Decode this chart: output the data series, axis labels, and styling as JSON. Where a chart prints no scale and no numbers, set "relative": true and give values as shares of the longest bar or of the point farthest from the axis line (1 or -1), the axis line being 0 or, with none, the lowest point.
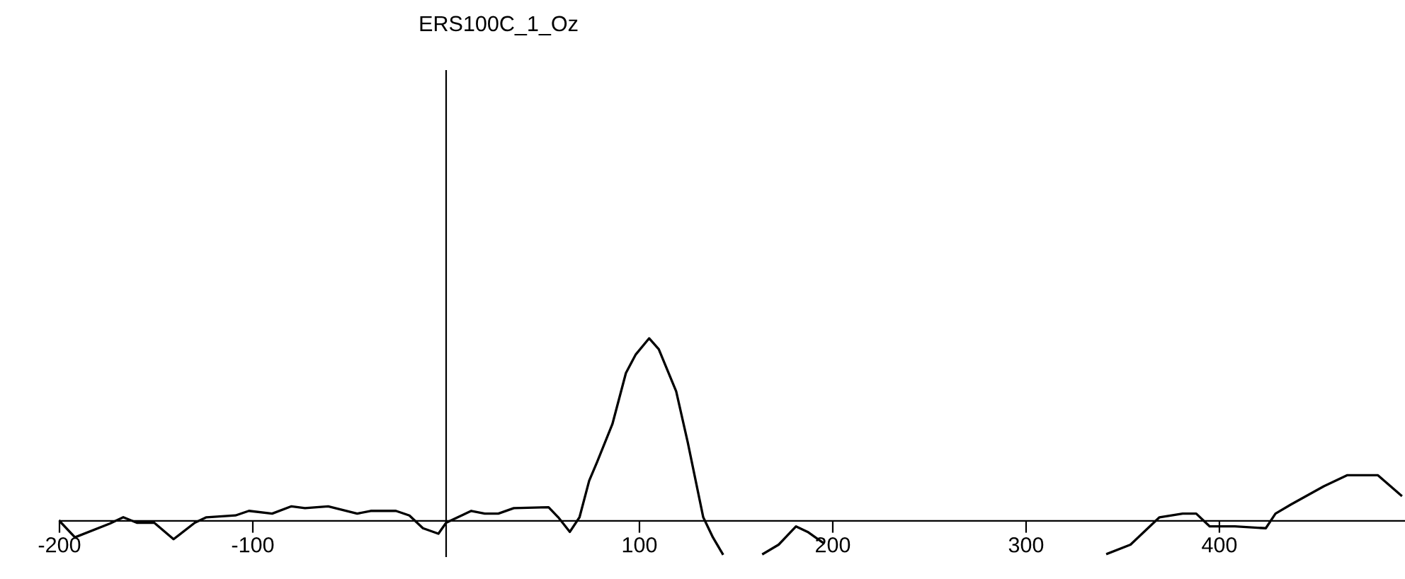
{
  "chart_data": {
    "type": "line",
    "title": "ERS100C_1_Oz",
    "relative": true,
    "xlim": [
      -200,
      496
    ],
    "xticks": [
      -200,
      -100,
      100,
      200,
      300,
      400
    ],
    "grid": false,
    "legend": false,
    "series": [
      {
        "color": "#000000",
        "x": [
          -200,
          -192,
          -174,
          -167,
          -160,
          -151,
          -141,
          -130,
          -124,
          -109,
          -102,
          -90,
          -80,
          -73,
          -61,
          -46,
          -39,
          -26,
          -19,
          -12,
          -4,
          0,
          8,
          13,
          20,
          27,
          35,
          53,
          58,
          64,
          69,
          74,
          78,
          86,
          93,
          98,
          105,
          110,
          119,
          125,
          133,
          138,
          143,
          153,
          164,
          172,
          181,
          187,
          195,
          270,
          342,
          354,
          369,
          381,
          388,
          395,
          408,
          424,
          429,
          437,
          454,
          466,
          482,
          494
        ],
        "values": [
          0,
          -0.09,
          -0.015,
          0.02,
          -0.01,
          -0.01,
          -0.1,
          -0.01,
          0.02,
          0.03,
          0.055,
          0.04,
          0.08,
          0.07,
          0.08,
          0.04,
          0.055,
          0.055,
          0.03,
          -0.04,
          -0.07,
          -0.01,
          0.03,
          0.055,
          0.04,
          0.04,
          0.07,
          0.075,
          0.02,
          -0.06,
          0.02,
          0.22,
          0.32,
          0.53,
          0.81,
          0.91,
          1,
          0.94,
          0.71,
          0.43,
          0.02,
          -0.09,
          -0.18,
          null,
          -0.18,
          -0.13,
          -0.03,
          -0.06,
          -0.12,
          null,
          -0.18,
          -0.13,
          0.02,
          0.04,
          0.04,
          -0.03,
          -0.03,
          -0.04,
          0.04,
          0.09,
          0.19,
          0.25,
          0.25,
          0.14
        ]
      }
    ]
  }
}
